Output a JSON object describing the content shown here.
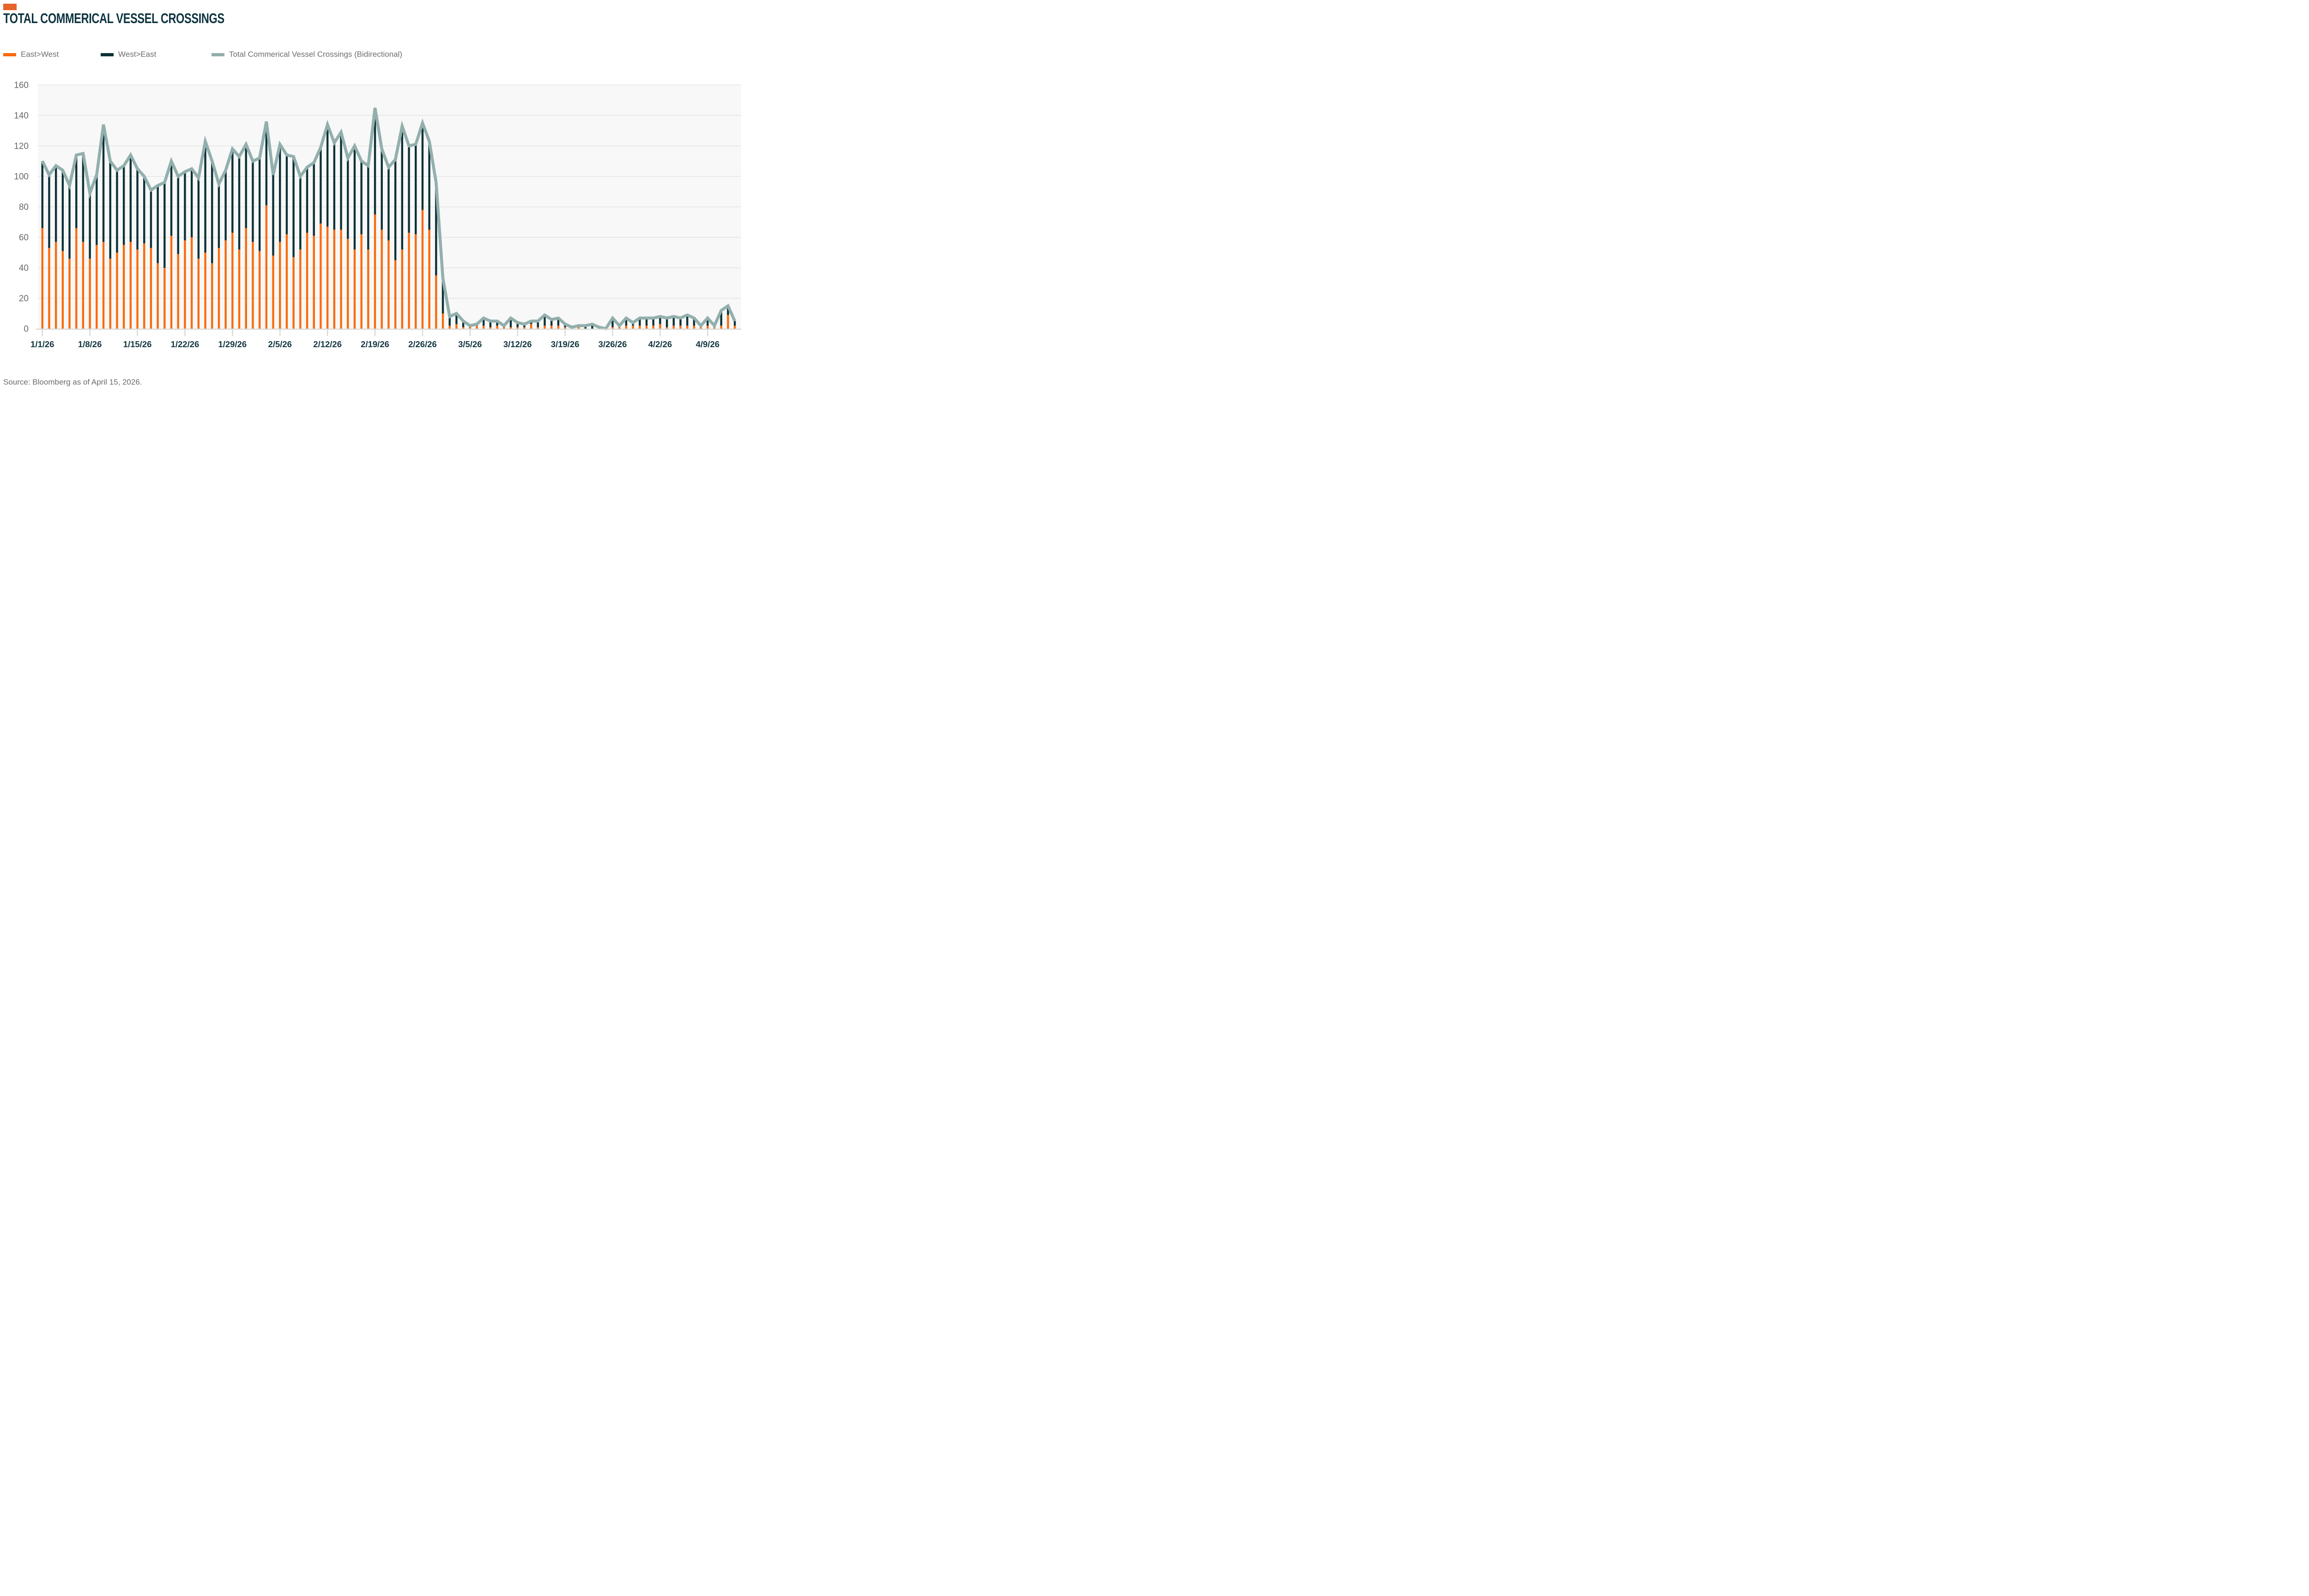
{
  "title": "TOTAL COMMERICAL VESSEL CROSSINGS",
  "source_note": "Source: Bloomberg as of April 15, 2026.",
  "colors": {
    "brand_block": "#E8622B",
    "bar_east_west": "#FB6A0B",
    "bar_west_east": "#0D3138",
    "total_line": "#92AFAD",
    "plot_background": "#F7F8F7",
    "gridline": "#DFE1E0",
    "axis_line": "#D8DAD9",
    "y_label": "#696969",
    "x_label": "#12363E",
    "title_text": "#0D3440",
    "legend_text": "#6E6E6E",
    "source_text": "#6B6B6B"
  },
  "legend": {
    "items": [
      {
        "label": "East>West",
        "color": "#FB6A0B"
      },
      {
        "label": "West>East",
        "color": "#0D3138"
      },
      {
        "label": "Total Commerical Vessel Crossings (Bidirectional)",
        "color": "#92AFAD"
      }
    ]
  },
  "chart_data": {
    "type": "bar",
    "stacked": true,
    "overlay_line_series": "Total Commerical Vessel Crossings (Bidirectional)",
    "title": "TOTAL COMMERICAL VESSEL CROSSINGS",
    "xlabel": "",
    "ylabel": "",
    "ylim": [
      0,
      160
    ],
    "yticks": [
      0,
      20,
      40,
      60,
      80,
      100,
      120,
      140,
      160
    ],
    "grid": "horizontal",
    "legend_position": "top-left",
    "x_tick_every_days": 7,
    "x_tick_labels": [
      "1/1/26",
      "1/8/26",
      "1/15/26",
      "1/22/26",
      "1/29/26",
      "2/5/26",
      "2/12/26",
      "2/19/26",
      "2/26/26",
      "3/5/26",
      "3/12/26",
      "3/19/26",
      "3/26/26",
      "4/2/26",
      "4/9/26"
    ],
    "categories": [
      "1/1/26",
      "1/2/26",
      "1/3/26",
      "1/4/26",
      "1/5/26",
      "1/6/26",
      "1/7/26",
      "1/8/26",
      "1/9/26",
      "1/10/26",
      "1/11/26",
      "1/12/26",
      "1/13/26",
      "1/14/26",
      "1/15/26",
      "1/16/26",
      "1/17/26",
      "1/18/26",
      "1/19/26",
      "1/20/26",
      "1/21/26",
      "1/22/26",
      "1/23/26",
      "1/24/26",
      "1/25/26",
      "1/26/26",
      "1/27/26",
      "1/28/26",
      "1/29/26",
      "1/30/26",
      "1/31/26",
      "2/1/26",
      "2/2/26",
      "2/3/26",
      "2/4/26",
      "2/5/26",
      "2/6/26",
      "2/7/26",
      "2/8/26",
      "2/9/26",
      "2/10/26",
      "2/11/26",
      "2/12/26",
      "2/13/26",
      "2/14/26",
      "2/15/26",
      "2/16/26",
      "2/17/26",
      "2/18/26",
      "2/19/26",
      "2/20/26",
      "2/21/26",
      "2/22/26",
      "2/23/26",
      "2/24/26",
      "2/25/26",
      "2/26/26",
      "2/27/26",
      "2/28/26",
      "3/1/26",
      "3/2/26",
      "3/3/26",
      "3/4/26",
      "3/5/26",
      "3/6/26",
      "3/7/26",
      "3/8/26",
      "3/9/26",
      "3/10/26",
      "3/11/26",
      "3/12/26",
      "3/13/26",
      "3/14/26",
      "3/15/26",
      "3/16/26",
      "3/17/26",
      "3/18/26",
      "3/19/26",
      "3/20/26",
      "3/21/26",
      "3/22/26",
      "3/23/26",
      "3/24/26",
      "3/25/26",
      "3/26/26",
      "3/27/26",
      "3/28/26",
      "3/29/26",
      "3/30/26",
      "3/31/26",
      "4/1/26",
      "4/2/26",
      "4/3/26",
      "4/4/26",
      "4/5/26",
      "4/6/26",
      "4/7/26",
      "4/8/26",
      "4/9/26",
      "4/10/26",
      "4/11/26",
      "4/12/26",
      "4/13/26"
    ],
    "series": [
      {
        "name": "East>West",
        "values": [
          66,
          53,
          57,
          51,
          46,
          66,
          57,
          46,
          55,
          57,
          46,
          50,
          55,
          57,
          52,
          56,
          53,
          43,
          40,
          61,
          49,
          58,
          60,
          46,
          50,
          43,
          53,
          58,
          63,
          52,
          66,
          57,
          51,
          81,
          48,
          57,
          62,
          47,
          52,
          63,
          61,
          69,
          67,
          65,
          65,
          59,
          52,
          62,
          52,
          75,
          65,
          58,
          45,
          52,
          63,
          62,
          78,
          65,
          35,
          10,
          2,
          3,
          1,
          1,
          2,
          2,
          1,
          2,
          1,
          1,
          1,
          1,
          3,
          1,
          2,
          2,
          2,
          1,
          0,
          1,
          0,
          0,
          1,
          0,
          1,
          2,
          2,
          2,
          2,
          2,
          2,
          3,
          1,
          2,
          2,
          2,
          2,
          1,
          2,
          1,
          2,
          9,
          2
        ]
      },
      {
        "name": "West>East",
        "values": [
          44,
          48,
          50,
          53,
          48,
          48,
          58,
          43,
          46,
          77,
          64,
          54,
          52,
          57,
          53,
          44,
          38,
          51,
          56,
          49,
          51,
          45,
          45,
          53,
          73,
          67,
          42,
          46,
          55,
          61,
          55,
          53,
          61,
          55,
          53,
          64,
          52,
          66,
          48,
          43,
          48,
          50,
          67,
          57,
          64,
          53,
          68,
          48,
          55,
          70,
          53,
          48,
          66,
          81,
          57,
          59,
          57,
          58,
          61,
          23,
          6,
          7,
          4,
          1,
          1,
          5,
          4,
          3,
          1,
          6,
          3,
          2,
          2,
          4,
          7,
          4,
          5,
          2,
          1,
          1,
          2,
          3,
          0,
          0,
          6,
          0,
          5,
          2,
          5,
          5,
          5,
          5,
          6,
          6,
          5,
          7,
          5,
          1,
          5,
          1,
          10,
          6,
          3
        ]
      },
      {
        "name": "Total Commerical Vessel Crossings (Bidirectional)",
        "values": [
          110,
          101,
          107,
          104,
          94,
          114,
          115,
          89,
          101,
          134,
          110,
          104,
          107,
          114,
          105,
          100,
          91,
          94,
          96,
          110,
          100,
          103,
          105,
          99,
          123,
          110,
          95,
          104,
          118,
          113,
          121,
          110,
          112,
          136,
          101,
          121,
          114,
          113,
          100,
          106,
          109,
          119,
          134,
          122,
          129,
          112,
          120,
          110,
          107,
          145,
          118,
          106,
          111,
          133,
          120,
          121,
          135,
          123,
          96,
          33,
          8,
          10,
          5,
          2,
          3,
          7,
          5,
          5,
          2,
          7,
          4,
          3,
          5,
          5,
          9,
          6,
          7,
          3,
          1,
          2,
          2,
          3,
          1,
          0,
          7,
          2,
          7,
          4,
          7,
          7,
          7,
          8,
          7,
          8,
          7,
          9,
          7,
          2,
          7,
          2,
          12,
          15,
          5
        ]
      }
    ]
  }
}
